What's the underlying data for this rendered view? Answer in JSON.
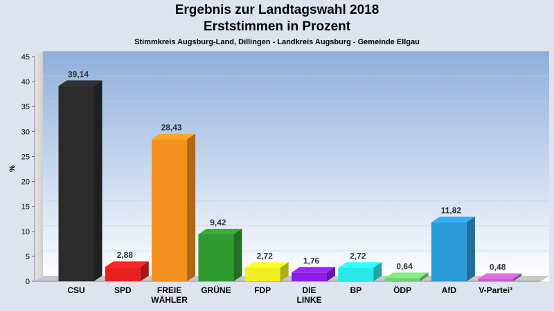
{
  "chart_data": {
    "type": "bar",
    "title": "Ergebnis zur Landtagswahl 2018",
    "subtitle": "Erststimmen in Prozent",
    "subtitle2": "Stimmkreis Augsburg-Land, Dillingen - Landkreis Augsburg - Gemeinde Ellgau",
    "ylabel": "%",
    "ylim": [
      0,
      45
    ],
    "yticks": [
      "0",
      "5",
      "10",
      "15",
      "20",
      "25",
      "30",
      "35",
      "40",
      "45"
    ],
    "grid": true,
    "categories": [
      "CSU",
      "SPD",
      "FREIE\nWÄHLER",
      "GRÜNE",
      "FDP",
      "DIE\nLINKE",
      "BP",
      "ÖDP",
      "AfD",
      "V-Partei³"
    ],
    "values": [
      39.14,
      2.88,
      28.43,
      9.42,
      2.72,
      1.76,
      2.72,
      0.64,
      11.82,
      0.48
    ],
    "value_labels": [
      "39,14",
      "2,88",
      "28,43",
      "9,42",
      "2,72",
      "1,76",
      "2,72",
      "0,64",
      "11,82",
      "0,48"
    ],
    "colors": [
      "#2b2b2b",
      "#e82020",
      "#f39020",
      "#2f9a2f",
      "#f0f020",
      "#8a1ee8",
      "#28e8e8",
      "#70d070",
      "#2a9ad8",
      "#c060c8"
    ]
  }
}
